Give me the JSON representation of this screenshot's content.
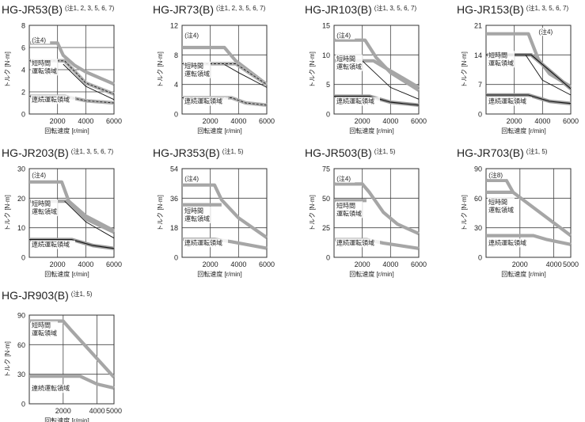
{
  "chart_data": [
    {
      "type": "line",
      "model": "HG-JR53(B)",
      "notes": "(注1, 2, 3, 5, 6, 7)",
      "title": "HG-JR53(B) (注1, 2, 3, 5, 6, 7)",
      "xlabel": "回転速度 [r/min]",
      "ylabel": "トルク [N·m]",
      "xlim": [
        0,
        6000
      ],
      "ylim": [
        0,
        8
      ],
      "xticks": [
        2000,
        4000,
        6000
      ],
      "yticks": [
        0,
        2,
        4,
        6,
        8
      ],
      "annotations": [
        "(注4)"
      ],
      "label_short": [
        "短時間",
        "運転領域"
      ],
      "label_cont": "連続運転領域",
      "series": [
        {
          "name": "短時間運転領域 (注4)",
          "style": "peak",
          "points": [
            [
              0,
              6.4
            ],
            [
              2000,
              6.4
            ],
            [
              2400,
              5.3
            ],
            [
              3200,
              4.4
            ],
            [
              4000,
              3.8
            ],
            [
              6000,
              2.7
            ]
          ]
        },
        {
          "name": "短時間運転領域",
          "style": "dashed",
          "points": [
            [
              0,
              4.8
            ],
            [
              2500,
              4.8
            ],
            [
              4000,
              2.8
            ],
            [
              6000,
              1.8
            ]
          ]
        },
        {
          "name": "短時間運転領域 (thin)",
          "style": "thin",
          "points": [
            [
              2400,
              4.5
            ],
            [
              4000,
              2.5
            ],
            [
              6000,
              1.3
            ]
          ]
        },
        {
          "name": "連続運転領域",
          "style": "dashed",
          "points": [
            [
              0,
              1.6
            ],
            [
              2500,
              1.6
            ],
            [
              4000,
              1.2
            ],
            [
              6000,
              1.0
            ]
          ]
        }
      ]
    },
    {
      "type": "line",
      "model": "HG-JR73(B)",
      "notes": "(注1, 2, 3, 5, 6, 7)",
      "title": "HG-JR73(B) (注1, 2, 3, 5, 6, 7)",
      "xlabel": "回転速度 [r/min]",
      "ylabel": "トルク [N·m]",
      "xlim": [
        0,
        6000
      ],
      "ylim": [
        0,
        12
      ],
      "xticks": [
        2000,
        4000,
        6000
      ],
      "yticks": [
        0,
        4,
        8,
        12
      ],
      "annotations": [
        "(注4)"
      ],
      "label_short": [
        "短時間",
        "運転領域"
      ],
      "label_cont": "連続運転領域",
      "series": [
        {
          "name": "短時間運転領域 (注4)",
          "style": "peak",
          "points": [
            [
              0,
              9.0
            ],
            [
              3000,
              9.0
            ],
            [
              3800,
              7.2
            ],
            [
              6000,
              4.0
            ]
          ]
        },
        {
          "name": "短時間運転領域",
          "style": "dashed",
          "points": [
            [
              0,
              6.8
            ],
            [
              3800,
              6.8
            ],
            [
              6000,
              4.0
            ]
          ]
        },
        {
          "name": "短時間運転領域 (thin)",
          "style": "thin",
          "points": [
            [
              3000,
              6.7
            ],
            [
              4000,
              5.6
            ],
            [
              6000,
              3.6
            ]
          ]
        },
        {
          "name": "連続運転領域",
          "style": "dashed",
          "points": [
            [
              0,
              2.2
            ],
            [
              3500,
              2.2
            ],
            [
              4500,
              1.5
            ],
            [
              6000,
              1.2
            ]
          ]
        }
      ]
    },
    {
      "type": "line",
      "model": "HG-JR103(B)",
      "notes": "(注1, 3, 5, 6, 7)",
      "title": "HG-JR103(B) (注1, 3, 5, 6, 7)",
      "xlabel": "回転速度 [r/min]",
      "ylabel": "トルク [N·m]",
      "xlim": [
        0,
        6000
      ],
      "ylim": [
        0,
        15
      ],
      "xticks": [
        2000,
        4000,
        6000
      ],
      "yticks": [
        0,
        5,
        10,
        15
      ],
      "annotations": [
        "(注4)"
      ],
      "label_short": [
        "短時間",
        "運転領域"
      ],
      "label_cont": "連続運転領域",
      "series": [
        {
          "name": "短時間運転領域 (注4)",
          "style": "peak",
          "points": [
            [
              0,
              12.5
            ],
            [
              2200,
              12.5
            ],
            [
              3000,
              9.5
            ],
            [
              4000,
              7.0
            ],
            [
              6000,
              4.0
            ]
          ]
        },
        {
          "name": "短時間運転領域",
          "style": "thick",
          "points": [
            [
              0,
              9.0
            ],
            [
              2800,
              9.0
            ],
            [
              3500,
              8.0
            ],
            [
              6000,
              4.5
            ]
          ]
        },
        {
          "name": "短時間運転領域 (thin)",
          "style": "thin",
          "points": [
            [
              2000,
              9.0
            ],
            [
              4000,
              4.5
            ],
            [
              6000,
              2.5
            ]
          ]
        },
        {
          "name": "連続運転領域",
          "style": "ribbon",
          "points": [
            [
              0,
              3.0
            ],
            [
              2500,
              3.0
            ],
            [
              4000,
              2.0
            ],
            [
              6000,
              1.5
            ]
          ]
        }
      ]
    },
    {
      "type": "line",
      "model": "HG-JR153(B)",
      "notes": "(注1, 3, 5, 6, 7)",
      "title": "HG-JR153(B) (注1, 3, 5, 6, 7)",
      "xlabel": "回転速度 [r/min]",
      "ylabel": "トルク [N·m]",
      "xlim": [
        0,
        6000
      ],
      "ylim": [
        0,
        21
      ],
      "xticks": [
        2000,
        4000,
        6000
      ],
      "yticks": [
        0,
        7,
        14,
        21
      ],
      "annotations": [
        "(注4)"
      ],
      "label_short": [
        "短時間",
        "運転領域"
      ],
      "label_cont": "連続運転領域",
      "series": [
        {
          "name": "短時間運転領域 (注4)",
          "style": "peak",
          "points": [
            [
              0,
              19.0
            ],
            [
              3000,
              19.0
            ],
            [
              3700,
              13.0
            ],
            [
              4500,
              9.5
            ],
            [
              6000,
              6.5
            ]
          ]
        },
        {
          "name": "短時間運転領域",
          "style": "ribbon",
          "points": [
            [
              0,
              14.0
            ],
            [
              3200,
              14.0
            ],
            [
              6000,
              6.0
            ]
          ]
        },
        {
          "name": "短時間運転領域 (thin)",
          "style": "thin",
          "points": [
            [
              2800,
              14.0
            ],
            [
              4000,
              8.0
            ],
            [
              6000,
              4.5
            ]
          ]
        },
        {
          "name": "連続運転領域",
          "style": "ribbon",
          "points": [
            [
              0,
              4.5
            ],
            [
              3000,
              4.5
            ],
            [
              4500,
              3.0
            ],
            [
              6000,
              2.5
            ]
          ]
        }
      ]
    },
    {
      "type": "line",
      "model": "HG-JR203(B)",
      "notes": "(注1, 3, 5, 6, 7)",
      "title": "HG-JR203(B) (注1, 3, 5, 6, 7)",
      "xlabel": "回転速度 [r/min]",
      "ylabel": "トルク [N·m]",
      "xlim": [
        0,
        6000
      ],
      "ylim": [
        0,
        30
      ],
      "xticks": [
        2000,
        4000,
        6000
      ],
      "yticks": [
        0,
        10,
        20,
        30
      ],
      "annotations": [
        "(注4)"
      ],
      "label_short": [
        "短時間",
        "運転領域"
      ],
      "label_cont": "連続運転領域",
      "series": [
        {
          "name": "短時間運転領域 (注4)",
          "style": "peak",
          "points": [
            [
              0,
              25.5
            ],
            [
              2300,
              25.5
            ],
            [
              2800,
              19.0
            ],
            [
              4000,
              14.0
            ],
            [
              6000,
              9.0
            ]
          ]
        },
        {
          "name": "短時間運転領域",
          "style": "thick",
          "points": [
            [
              0,
              19.0
            ],
            [
              2700,
              19.0
            ],
            [
              4000,
              13.0
            ],
            [
              6000,
              8.5
            ]
          ]
        },
        {
          "name": "短時間運転領域 (thin)",
          "style": "thin",
          "points": [
            [
              2500,
              19.0
            ],
            [
              4000,
              12.0
            ],
            [
              6000,
              6.5
            ]
          ]
        },
        {
          "name": "連続運転領域",
          "style": "ribbon",
          "points": [
            [
              0,
              6.0
            ],
            [
              3000,
              6.0
            ],
            [
              4500,
              4.0
            ],
            [
              6000,
              3.0
            ]
          ]
        }
      ]
    },
    {
      "type": "line",
      "model": "HG-JR353(B)",
      "notes": "(注1, 5)",
      "title": "HG-JR353(B) (注1, 5)",
      "xlabel": "回転速度 [r/min]",
      "ylabel": "トルク [N·m]",
      "xlim": [
        0,
        6000
      ],
      "ylim": [
        0,
        54
      ],
      "xticks": [
        2000,
        4000,
        6000
      ],
      "yticks": [
        0,
        18,
        36,
        54
      ],
      "annotations": [
        "(注4)"
      ],
      "label_short": [
        "短時間",
        "運転領域"
      ],
      "label_cont": "連続運転領域",
      "series": [
        {
          "name": "短時間運転領域 (注4)",
          "style": "peak",
          "points": [
            [
              0,
              44.0
            ],
            [
              2300,
              44.0
            ],
            [
              2800,
              35.0
            ],
            [
              4000,
              24.0
            ],
            [
              6000,
              12.0
            ]
          ]
        },
        {
          "name": "短時間運転領域",
          "style": "peak",
          "points": [
            [
              0,
              32.0
            ],
            [
              2800,
              32.0
            ]
          ]
        },
        {
          "name": "連続運転領域",
          "style": "peak",
          "points": [
            [
              0,
              11.0
            ],
            [
              2300,
              11.0
            ],
            [
              3500,
              9.5
            ],
            [
              6000,
              5.5
            ]
          ]
        }
      ]
    },
    {
      "type": "line",
      "model": "HG-JR503(B)",
      "notes": "(注1, 5)",
      "title": "HG-JR503(B) (注1, 5)",
      "xlabel": "回転速度 [r/min]",
      "ylabel": "トルク [N·m]",
      "xlim": [
        0,
        6000
      ],
      "ylim": [
        0,
        75
      ],
      "xticks": [
        2000,
        4000,
        6000
      ],
      "yticks": [
        0,
        25,
        50,
        75
      ],
      "annotations": [
        "(注4)"
      ],
      "label_short": [
        "短時間",
        "運転領域"
      ],
      "label_cont": "連続運転領域",
      "series": [
        {
          "name": "短時間運転領域 (注4)",
          "style": "peak",
          "points": [
            [
              0,
              62.0
            ],
            [
              2000,
              62.0
            ],
            [
              2500,
              55.0
            ],
            [
              3500,
              38.0
            ],
            [
              4500,
              28.0
            ],
            [
              6000,
              20.0
            ]
          ]
        },
        {
          "name": "短時間運転領域",
          "style": "peak",
          "points": [
            [
              0,
              48.0
            ],
            [
              2300,
              48.0
            ]
          ]
        },
        {
          "name": "連続運転領域",
          "style": "peak",
          "points": [
            [
              0,
              15.0
            ],
            [
              2300,
              15.0
            ],
            [
              3500,
              12.0
            ],
            [
              6000,
              7.5
            ]
          ]
        }
      ]
    },
    {
      "type": "line",
      "model": "HG-JR703(B)",
      "notes": "(注1, 5)",
      "title": "HG-JR703(B) (注1, 5)",
      "xlabel": "回転速度 [r/min]",
      "ylabel": "トルク [N·m]",
      "xlim": [
        0,
        5000
      ],
      "ylim": [
        0,
        90
      ],
      "xticks": [
        2000,
        4000,
        5000
      ],
      "yticks": [
        0,
        30,
        60,
        90
      ],
      "annotations": [
        "(注8)"
      ],
      "label_short": [
        "短時間",
        "運転領域"
      ],
      "label_cont": "連続運転領域",
      "series": [
        {
          "name": "短時間運転領域 (注8)",
          "style": "peak",
          "points": [
            [
              0,
              78.0
            ],
            [
              1200,
              78.0
            ],
            [
              1600,
              66.0
            ],
            [
              5000,
              22.0
            ]
          ]
        },
        {
          "name": "短時間運転領域",
          "style": "peak",
          "points": [
            [
              0,
              66.0
            ],
            [
              1600,
              66.0
            ]
          ]
        },
        {
          "name": "連続運転領域",
          "style": "peak",
          "points": [
            [
              0,
              22.0
            ],
            [
              2800,
              22.0
            ],
            [
              3600,
              18.0
            ],
            [
              5000,
              13.0
            ]
          ]
        }
      ]
    },
    {
      "type": "line",
      "model": "HG-JR903(B)",
      "notes": "(注1, 5)",
      "title": "HG-JR903(B) (注1, 5)",
      "xlabel": "回転速度 [r/min]",
      "ylabel": "トルク [N·m]",
      "xlim": [
        0,
        5000
      ],
      "ylim": [
        0,
        90
      ],
      "xticks": [
        2000,
        4000,
        5000
      ],
      "yticks": [
        0,
        30,
        60,
        90
      ],
      "annotations": [],
      "label_short": [
        "短時間",
        "運転領域"
      ],
      "label_cont": "連続運転領域",
      "series": [
        {
          "name": "短時間運転領域",
          "style": "peak",
          "points": [
            [
              0,
              84.0
            ],
            [
              2000,
              84.0
            ],
            [
              2400,
              76.0
            ],
            [
              5000,
              27.0
            ]
          ]
        },
        {
          "name": "連続運転領域",
          "style": "peak",
          "points": [
            [
              0,
              28.0
            ],
            [
              3000,
              28.0
            ],
            [
              4000,
              20.0
            ],
            [
              5000,
              16.0
            ]
          ]
        }
      ]
    }
  ]
}
